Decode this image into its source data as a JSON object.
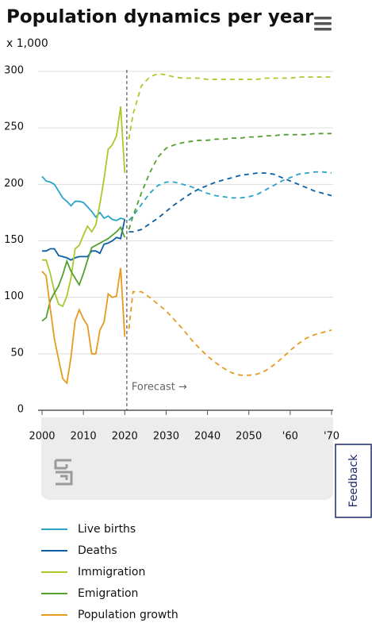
{
  "chart_data": {
    "type": "line",
    "title": "Population dynamics per year",
    "unit_label": "x 1,000",
    "annotation": "Forecast →",
    "forecast_start": 2020.5,
    "x": [
      2000,
      2001,
      2002,
      2003,
      2004,
      2005,
      2006,
      2007,
      2008,
      2009,
      2010,
      2011,
      2012,
      2013,
      2014,
      2015,
      2016,
      2017,
      2018,
      2019,
      2020,
      2021,
      2022,
      2024,
      2026,
      2028,
      2030,
      2032,
      2034,
      2036,
      2038,
      2040,
      2042,
      2044,
      2046,
      2048,
      2050,
      2052,
      2054,
      2056,
      2058,
      2060,
      2062,
      2064,
      2066,
      2068,
      2070
    ],
    "series": [
      {
        "name": "Live births",
        "color": "#2aa4c6",
        "values": [
          207,
          203,
          202,
          200,
          194,
          188,
          185,
          181,
          185,
          185,
          184,
          180,
          176,
          171,
          175,
          170,
          172,
          169,
          168,
          170,
          169,
          168,
          172,
          182,
          192,
          199,
          202,
          202,
          200,
          198,
          195,
          192,
          190,
          189,
          188,
          188,
          189,
          191,
          195,
          199,
          203,
          206,
          209,
          210,
          211,
          211,
          210
        ]
      },
      {
        "name": "Deaths",
        "color": "#0b5fa5",
        "values": [
          141,
          141,
          143,
          143,
          137,
          136,
          135,
          133,
          135,
          136,
          136,
          136,
          141,
          141,
          139,
          147,
          148,
          150,
          153,
          152,
          169,
          158,
          158,
          160,
          165,
          170,
          176,
          182,
          187,
          192,
          196,
          199,
          202,
          204,
          206,
          208,
          209,
          210,
          210,
          209,
          206,
          203,
          200,
          197,
          194,
          192,
          190
        ]
      },
      {
        "name": "Immigration",
        "color": "#a9c82a",
        "values": [
          133,
          133,
          121,
          105,
          94,
          92,
          101,
          117,
          143,
          146,
          155,
          163,
          158,
          164,
          183,
          205,
          231,
          235,
          243,
          269,
          210,
          240,
          262,
          287,
          295,
          298,
          297,
          295,
          294,
          294,
          294,
          293,
          293,
          293,
          293,
          293,
          293,
          293,
          294,
          294,
          294,
          294,
          295,
          295,
          295,
          295,
          295
        ]
      },
      {
        "name": "Emigration",
        "color": "#53a031",
        "values": [
          79,
          82,
          97,
          104,
          110,
          120,
          132,
          123,
          117,
          111,
          121,
          133,
          144,
          146,
          148,
          150,
          152,
          155,
          158,
          162,
          153,
          160,
          172,
          192,
          210,
          224,
          232,
          235,
          237,
          238,
          239,
          239,
          240,
          240,
          241,
          241,
          242,
          242,
          243,
          243,
          244,
          244,
          244,
          244,
          245,
          245,
          245
        ]
      },
      {
        "name": "Population growth",
        "color": "#e69a1f",
        "values": [
          123,
          119,
          90,
          63,
          45,
          28,
          24,
          47,
          79,
          89,
          81,
          75,
          50,
          50,
          71,
          78,
          103,
          100,
          101,
          126,
          65,
          72,
          105,
          105,
          100,
          94,
          88,
          80,
          72,
          63,
          55,
          48,
          42,
          37,
          33,
          31,
          31,
          32,
          35,
          40,
          46,
          53,
          59,
          64,
          67,
          69,
          71
        ]
      }
    ],
    "xlim": [
      2000,
      2070
    ],
    "xticks": [
      2000,
      2010,
      2020,
      2030,
      2040,
      2050,
      {
        "value": 2060,
        "label": "'60"
      },
      {
        "value": 2070,
        "label": "'70"
      }
    ],
    "ylim": [
      0,
      300
    ],
    "yticks": [
      0,
      50,
      100,
      150,
      200,
      250,
      300
    ],
    "grid": true
  },
  "feedback_button": "Feedback"
}
